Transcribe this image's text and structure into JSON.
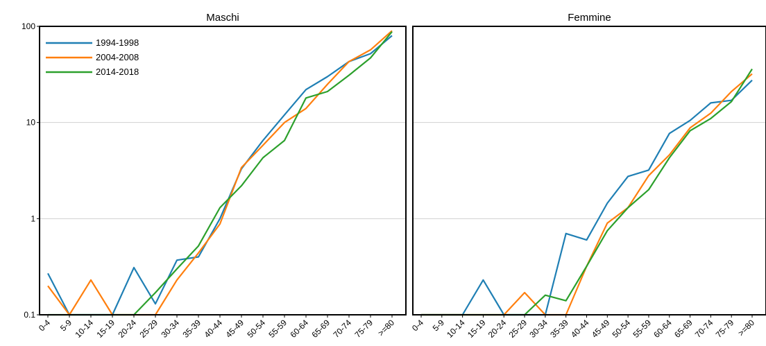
{
  "chart_data": [
    {
      "type": "line",
      "title": "Maschi",
      "xlabel": "",
      "ylabel": "",
      "yscale": "log",
      "ylim": [
        0.1,
        100
      ],
      "yticks": [
        0.1,
        1,
        10,
        100
      ],
      "ytick_labels": [
        "0.1",
        "1",
        "10",
        "100"
      ],
      "grid": "horizontal",
      "legend": "top-left",
      "categories": [
        "0-4",
        "5-9",
        "10-14",
        "15-19",
        "20-24",
        "25-29",
        "30-34",
        "35-39",
        "40-44",
        "45-49",
        "50-54",
        "55-59",
        "60-64",
        "65-69",
        "70-74",
        "75-79",
        ">=80"
      ],
      "series": [
        {
          "name": "1994-1998",
          "color": "#1f7fb4",
          "values": [
            0.27,
            0.1,
            0.1,
            0.1,
            0.31,
            0.13,
            0.37,
            0.4,
            1.0,
            3.3,
            6.5,
            12.0,
            22.0,
            30.0,
            43.0,
            52.0,
            80.0
          ]
        },
        {
          "name": "2004-2008",
          "color": "#ff7f0e",
          "values": [
            0.2,
            0.1,
            0.23,
            0.1,
            0.1,
            0.1,
            0.23,
            0.44,
            0.88,
            3.4,
            5.8,
            10.0,
            14.0,
            25.0,
            43.0,
            57.0,
            90.0
          ]
        },
        {
          "name": "2014-2018",
          "color": "#2ca02c",
          "values": [
            0.1,
            0.1,
            0.1,
            0.1,
            0.1,
            0.17,
            0.3,
            0.52,
            1.3,
            2.2,
            4.3,
            6.5,
            18.0,
            21.0,
            31.0,
            47.0,
            88.0
          ]
        }
      ]
    },
    {
      "type": "line",
      "title": "Femmine",
      "xlabel": "",
      "ylabel": "",
      "yscale": "log",
      "ylim": [
        0.1,
        100
      ],
      "grid": "horizontal",
      "categories": [
        "0-4",
        "5-9",
        "10-14",
        "15-19",
        "20-24",
        "25-29",
        "30-34",
        "35-39",
        "40-44",
        "45-49",
        "50-54",
        "55-59",
        "60-64",
        "65-69",
        "70-74",
        "75-79",
        ">=80"
      ],
      "series": [
        {
          "name": "1994-1998",
          "color": "#1f7fb4",
          "values": [
            0.1,
            0.1,
            0.1,
            0.23,
            0.1,
            0.1,
            0.1,
            0.7,
            0.6,
            1.45,
            2.75,
            3.2,
            7.7,
            10.5,
            16.0,
            17.0,
            27.5
          ]
        },
        {
          "name": "2004-2008",
          "color": "#ff7f0e",
          "values": [
            0.1,
            0.1,
            0.1,
            0.1,
            0.1,
            0.17,
            0.1,
            0.1,
            0.32,
            0.9,
            1.3,
            2.8,
            4.6,
            8.8,
            12.5,
            21.0,
            32.0
          ]
        },
        {
          "name": "2014-2018",
          "color": "#2ca02c",
          "values": [
            0.1,
            0.1,
            0.1,
            0.1,
            0.1,
            0.1,
            0.16,
            0.14,
            0.32,
            0.75,
            1.3,
            2.0,
            4.3,
            8.2,
            11.0,
            16.5,
            36.0
          ]
        }
      ]
    }
  ]
}
